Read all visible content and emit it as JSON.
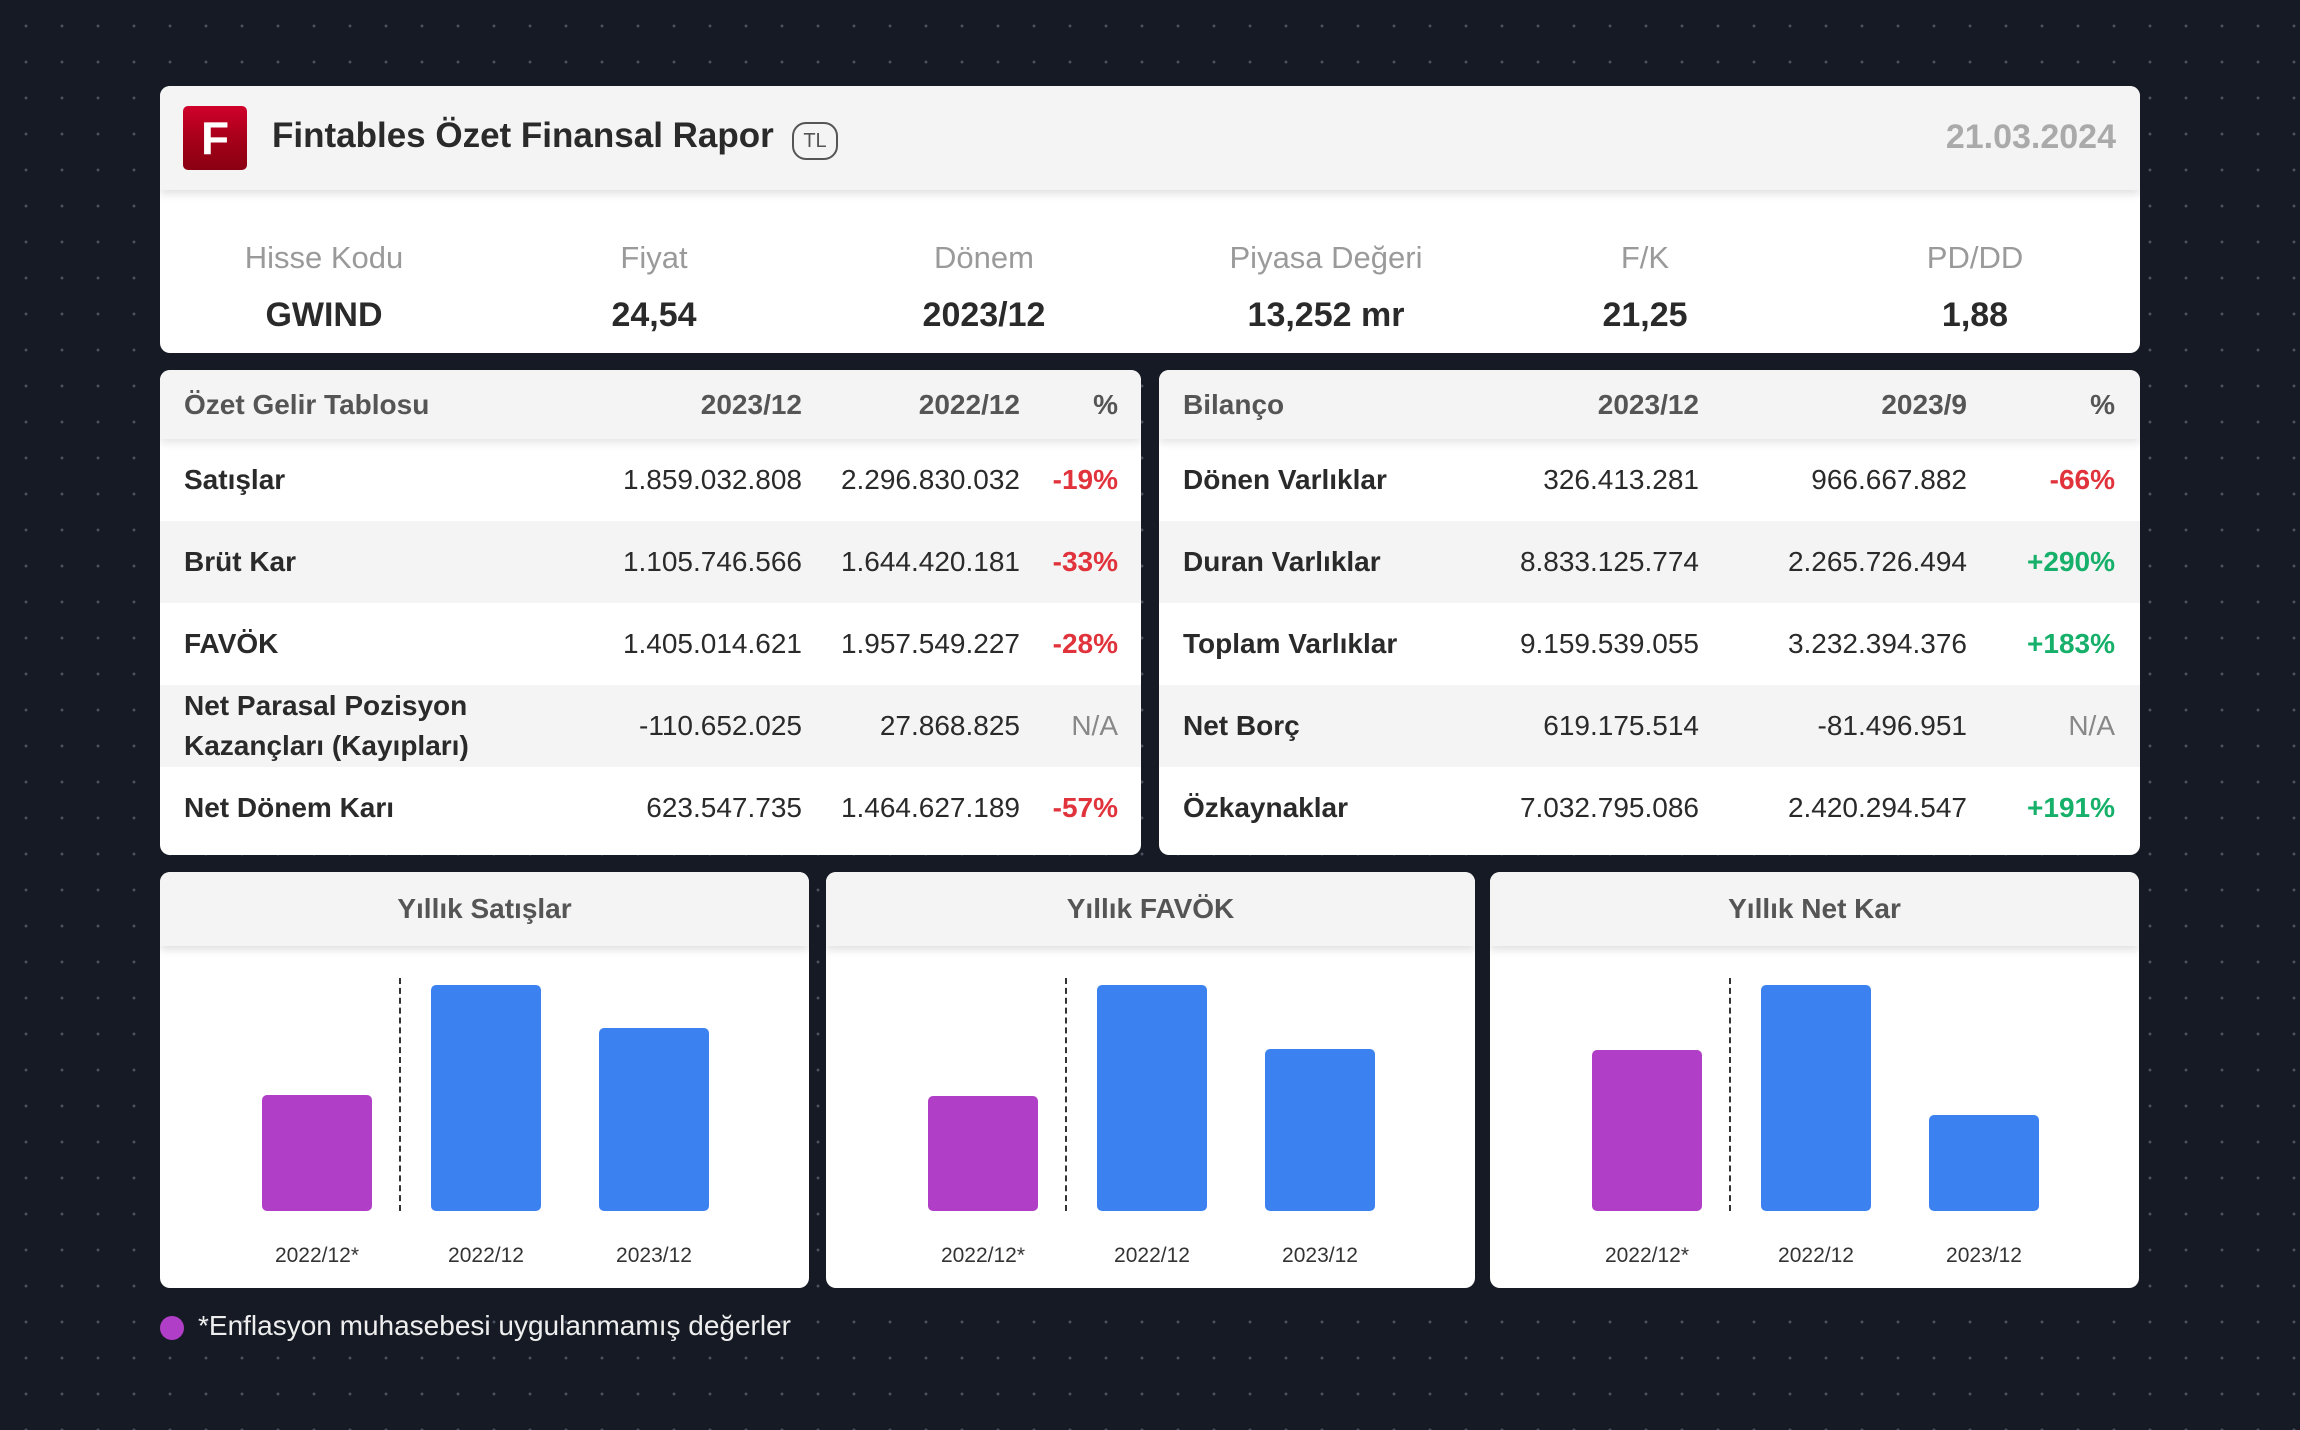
{
  "header": {
    "logo_letter": "F",
    "title": "Fintables Özet Finansal Rapor",
    "currency": "TL",
    "date": "21.03.2024"
  },
  "summary": [
    {
      "label": "Hisse Kodu",
      "value": "GWIND"
    },
    {
      "label": "Fiyat",
      "value": "24,54"
    },
    {
      "label": "Dönem",
      "value": "2023/12"
    },
    {
      "label": "Piyasa Değeri",
      "value": "13,252 mr"
    },
    {
      "label": "F/K",
      "value": "21,25"
    },
    {
      "label": "PD/DD",
      "value": "1,88"
    }
  ],
  "income": {
    "headers": [
      "Özet Gelir Tablosu",
      "2023/12",
      "2022/12",
      "%"
    ],
    "rows": [
      {
        "label": "Satışlar",
        "a": "1.859.032.808",
        "b": "2.296.830.032",
        "p": "-19%",
        "t": "neg"
      },
      {
        "label": "Brüt Kar",
        "a": "1.105.746.566",
        "b": "1.644.420.181",
        "p": "-33%",
        "t": "neg"
      },
      {
        "label": "FAVÖK",
        "a": "1.405.014.621",
        "b": "1.957.549.227",
        "p": "-28%",
        "t": "neg"
      },
      {
        "label": "Net Parasal Pozisyon Kazançları (Kayıpları)",
        "a": "-110.652.025",
        "b": "27.868.825",
        "p": "N/A",
        "t": "na"
      },
      {
        "label": "Net Dönem Karı",
        "a": "623.547.735",
        "b": "1.464.627.189",
        "p": "-57%",
        "t": "neg"
      }
    ]
  },
  "balance": {
    "headers": [
      "Bilanço",
      "2023/12",
      "2023/9",
      "%"
    ],
    "rows": [
      {
        "label": "Dönen Varlıklar",
        "a": "326.413.281",
        "b": "966.667.882",
        "p": "-66%",
        "t": "neg"
      },
      {
        "label": "Duran Varlıklar",
        "a": "8.833.125.774",
        "b": "2.265.726.494",
        "p": "+290%",
        "t": "pos"
      },
      {
        "label": "Toplam Varlıklar",
        "a": "9.159.539.055",
        "b": "3.232.394.376",
        "p": "+183%",
        "t": "pos"
      },
      {
        "label": "Net Borç",
        "a": "619.175.514",
        "b": "-81.496.951",
        "p": "N/A",
        "t": "na"
      },
      {
        "label": "Özkaynaklar",
        "a": "7.032.795.086",
        "b": "2.420.294.547",
        "p": "+191%",
        "t": "pos"
      }
    ]
  },
  "chart_data": [
    {
      "type": "bar",
      "title": "Yıllık Satışlar",
      "categories": [
        "2022/12*",
        "2022/12",
        "2023/12"
      ],
      "values": [
        1180000000,
        2296830032,
        1859032808
      ],
      "colors": [
        "#b03ec6",
        "#3b82f0",
        "#3b82f0"
      ]
    },
    {
      "type": "bar",
      "title": "Yıllık FAVÖK",
      "categories": [
        "2022/12*",
        "2022/12",
        "2023/12"
      ],
      "values": [
        1000000000,
        1957549227,
        1405014621
      ],
      "colors": [
        "#b03ec6",
        "#3b82f0",
        "#3b82f0"
      ]
    },
    {
      "type": "bar",
      "title": "Yıllık Net Kar",
      "categories": [
        "2022/12*",
        "2022/12",
        "2023/12"
      ],
      "values": [
        1046000000,
        1464627189,
        623547735
      ],
      "colors": [
        "#b03ec6",
        "#3b82f0",
        "#3b82f0"
      ]
    }
  ],
  "footnote": "*Enflasyon muhasebesi uygulanmamış değerler",
  "footnote_color": "#b03ec6"
}
